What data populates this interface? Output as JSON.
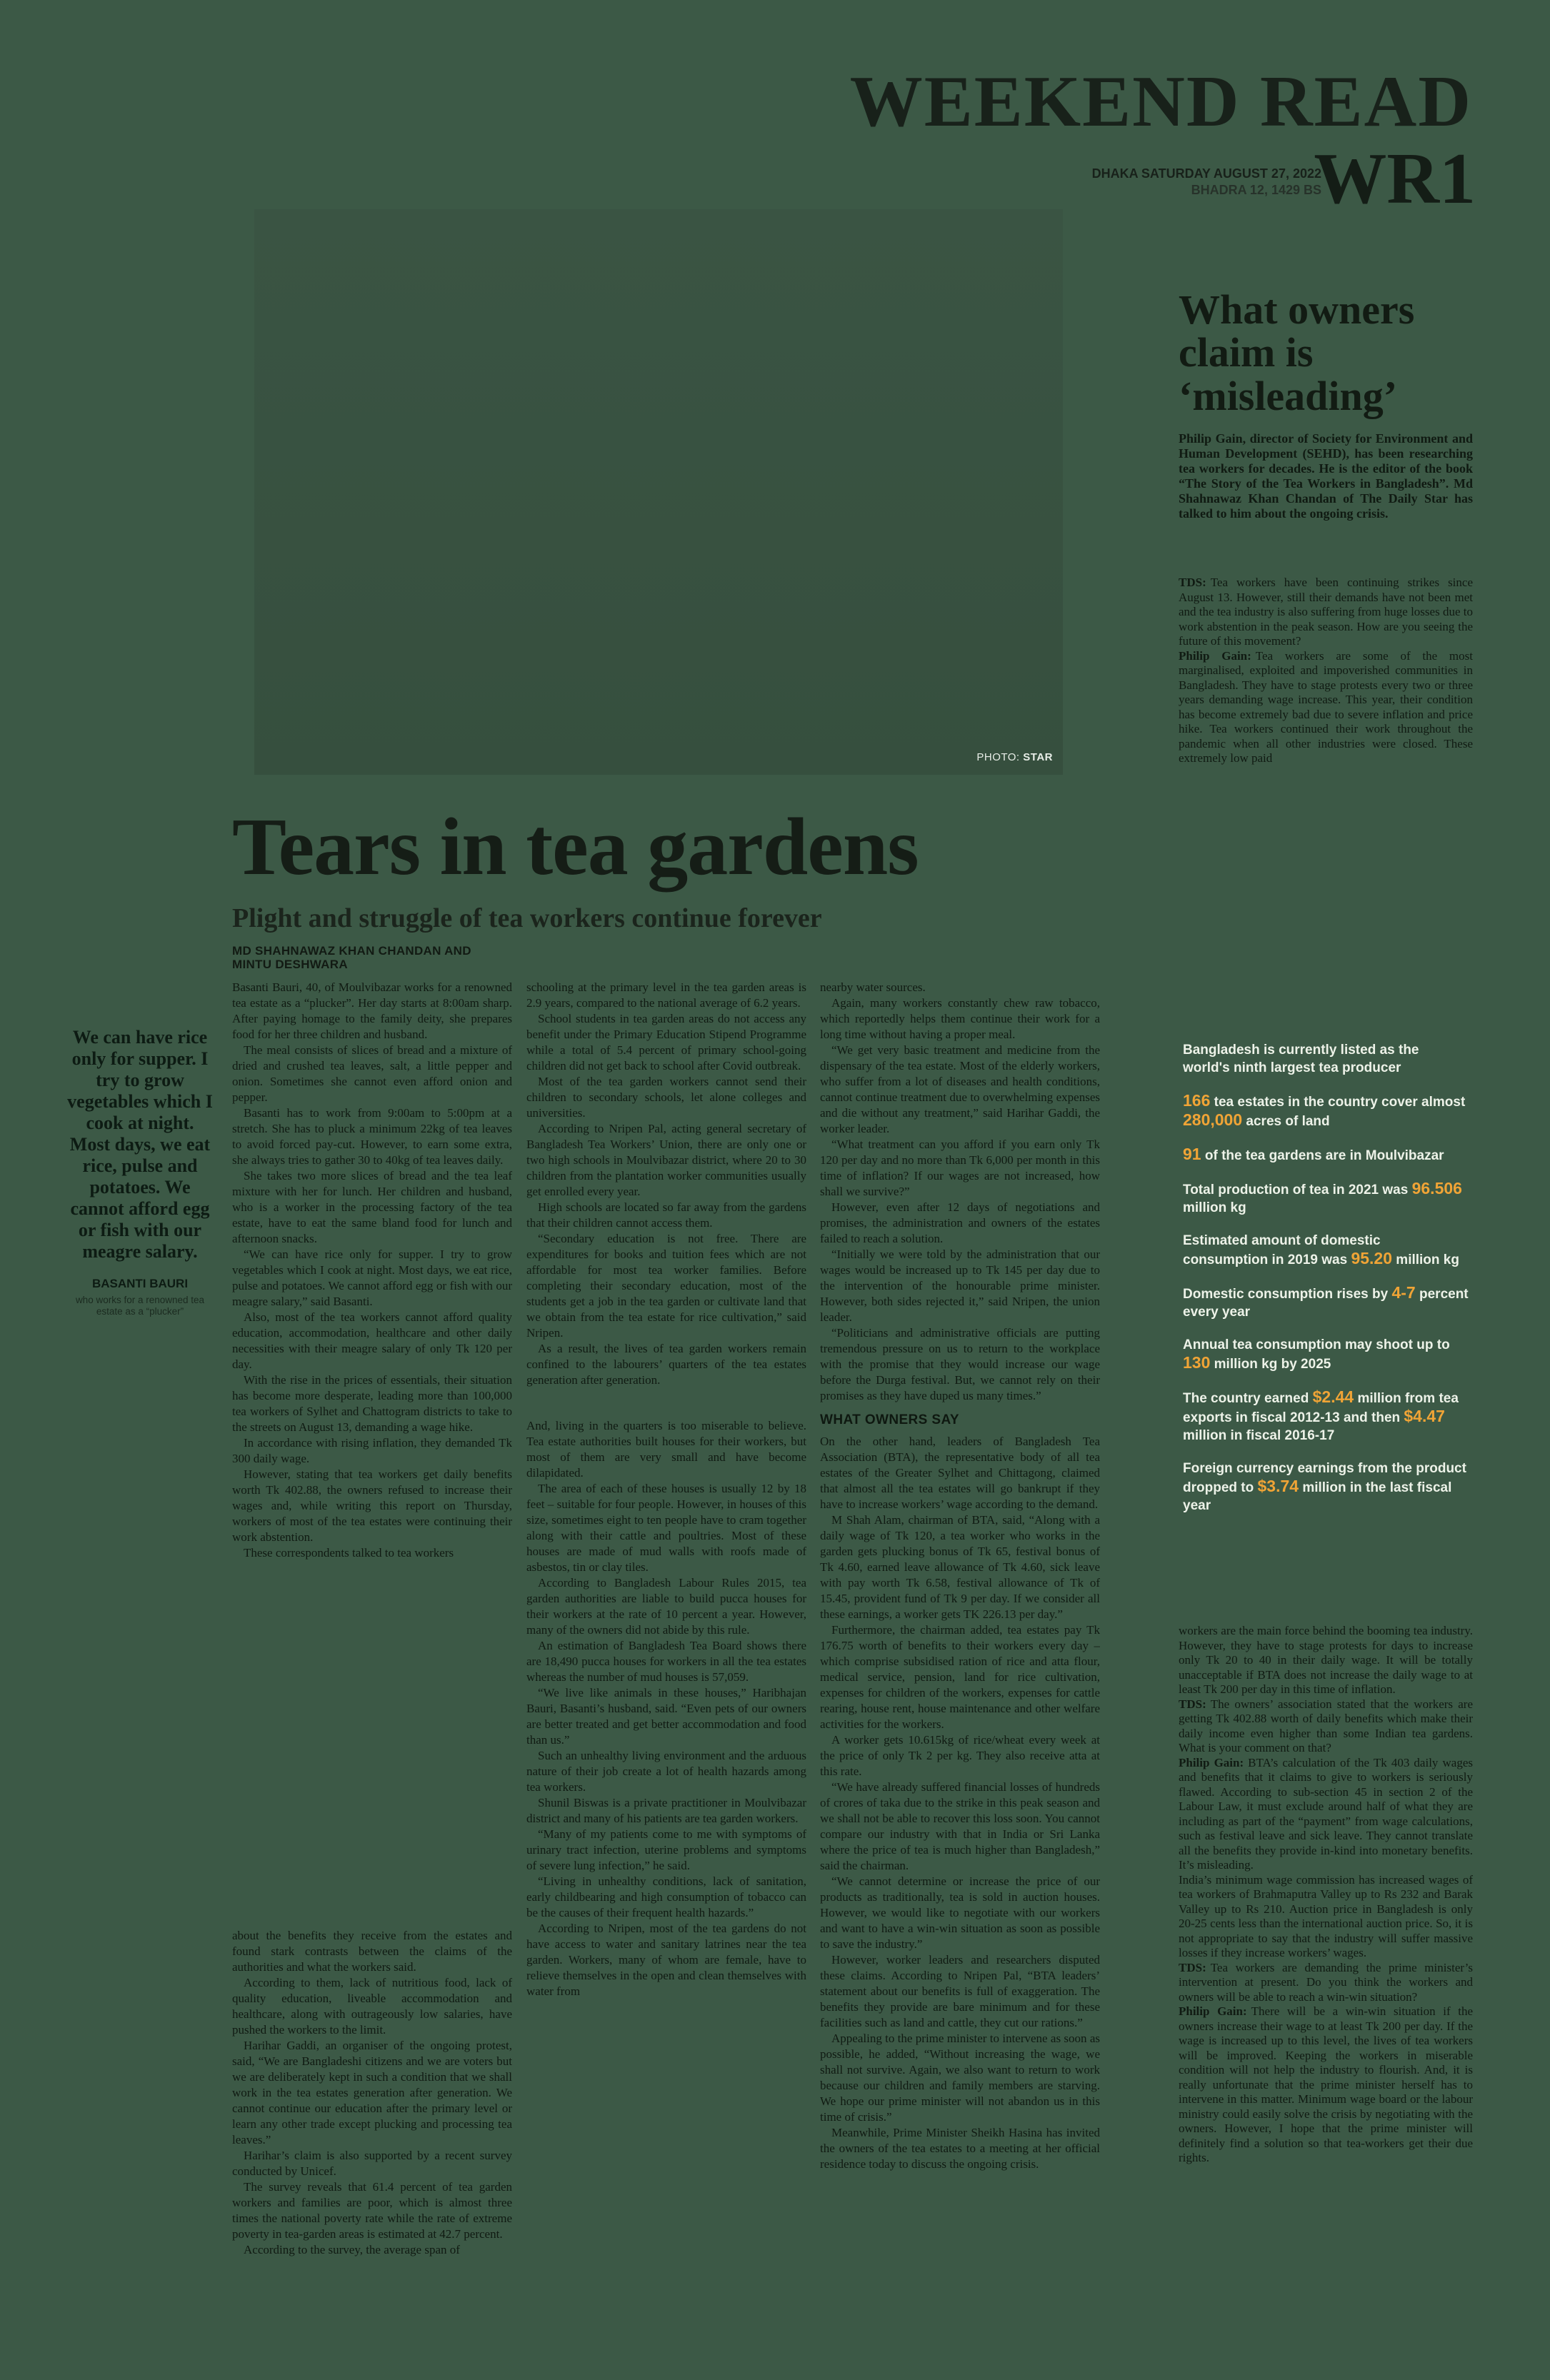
{
  "masthead": {
    "title": "WEEKEND READ",
    "date_line1": "DHAKA SATURDAY AUGUST 27, 2022",
    "date_line2": "BHADRA 12, 1429 BS",
    "page_code": "WR1"
  },
  "photo": {
    "credit_label": "PHOTO:",
    "credit_value": "STAR"
  },
  "main_article": {
    "headline": "Tears in tea gardens",
    "subhead": "Plight and struggle of tea workers continue forever",
    "byline": "MD SHAHNAWAZ KHAN CHANDAN AND MINTU DESHWARA",
    "col1a": [
      "Basanti Bauri, 40, of Moulvibazar works for a renowned tea estate as a “plucker”. Her day starts at 8:00am sharp. After paying homage to the family deity, she prepares food for her three children and husband.",
      "The meal consists of slices of bread and a mixture of dried and crushed tea leaves, salt, a little pepper and onion. Sometimes she cannot even afford onion and pepper.",
      "Basanti has to work from 9:00am to 5:00pm at a stretch. She has to pluck a minimum 22kg of tea leaves to avoid forced pay-cut. However, to earn some extra, she always tries to gather 30 to 40kg of tea leaves daily.",
      "She takes two more slices of bread and the tea leaf mixture with her for lunch. Her children and husband, who is a worker in the processing factory of the tea estate, have to eat the same bland food for lunch and afternoon snacks.",
      "“We can have rice only for supper. I try to grow vegetables which I cook at night. Most days, we eat rice, pulse and potatoes. We cannot afford egg or fish with our meagre salary,” said Basanti.",
      "Also, most of the tea workers cannot afford quality education, accommodation, healthcare and other daily necessities with their meagre salary of only Tk 120 per day.",
      "With the rise in the prices of essentials, their situation has become more desperate, leading more than 100,000 tea workers of Sylhet and Chattogram districts to take to the streets on August 13, demanding a wage hike.",
      "In accordance with rising inflation, they demanded Tk 300 daily wage.",
      "However, stating that tea workers get daily benefits worth Tk 402.88, the owners refused to increase their wages and, while writing this report on Thursday, workers of most of the tea estates were continuing their work abstention.",
      "These correspondents talked to tea workers"
    ],
    "col1b": [
      "about the benefits they receive from the estates and found stark contrasts between the claims of the authorities and what the workers said.",
      "According to them, lack of nutritious food, lack of quality education, liveable accommodation and healthcare, along with outrageously low salaries, have pushed the workers to the limit.",
      "Harihar Gaddi, an organiser of the ongoing protest, said, “We are Bangladeshi citizens and we are voters but we are deliberately kept in such a condition that we shall work in the tea estates generation after generation. We cannot continue our education after the primary level or learn any other trade except plucking and processing tea leaves.”",
      "Harihar’s claim is also supported by a recent survey conducted by Unicef.",
      "The survey reveals that 61.4 percent of tea garden workers and families are poor, which is almost three times the national poverty rate while the rate of extreme poverty in tea-garden areas is estimated at 42.7 percent.",
      "According to the survey, the average span of"
    ],
    "col2a": [
      "schooling at the primary level in the tea garden areas is 2.9 years, compared to the national average of 6.2 years.",
      "School students in tea garden areas do not access any benefit under the Primary Education Stipend Programme while a total of 5.4 percent of primary school-going children did not get back to school after Covid outbreak.",
      "Most of the tea garden workers cannot send their children to secondary schools, let alone colleges and universities.",
      "According to Nripen Pal, acting general secretary of Bangladesh Tea Workers’ Union, there are only one or two high schools in Moulvibazar district, where 20 to 30 children from the plantation worker communities usually get enrolled every year.",
      "High schools are located so far away from the gardens that their children cannot access them.",
      "“Secondary education is not free. There are expenditures for books and tuition fees which are not affordable for most tea worker families. Before completing their secondary education, most of the students get a job in the tea garden or cultivate land that we obtain from the tea estate for rice cultivation,” said Nripen.",
      "As a result, the lives of tea garden workers remain confined to the labourers’ quarters of the tea estates generation after generation."
    ],
    "col2b": [
      "And, living in the quarters is too miserable to believe. Tea estate authorities built houses for their workers, but most of them are very small and have become dilapidated.",
      "The area of each of these houses is usually 12 by 18 feet – suitable for four people. However, in houses of this size, sometimes eight to ten people have to cram together along with their cattle and poultries. Most of these houses are made of mud walls with roofs made of asbestos, tin or clay tiles.",
      "According to Bangladesh Labour Rules 2015, tea garden authorities are liable to build pucca houses for their workers at the rate of 10 percent a year. However, many of the owners did not abide by this rule.",
      "An estimation of Bangladesh Tea Board shows there are 18,490 pucca houses for workers in all the tea estates whereas the number of mud houses is 57,059.",
      "“We live like animals in these houses,” Haribhajan Bauri, Basanti’s husband, said. “Even pets of our owners are better treated and get better accommodation and food than us.”",
      "Such an unhealthy living environment and the arduous nature of their job create a lot of health hazards among tea workers.",
      "Shunil Biswas is a private practitioner in Moulvibazar district and many of his patients are tea garden workers.",
      "“Many of my patients come to me with symptoms of urinary tract infection, uterine problems and symptoms of severe lung infection,” he said.",
      "“Living in unhealthy conditions, lack of sanitation, early childbearing and high consumption of tobacco can be the causes of their frequent health hazards.”",
      "According to Nripen, most of the tea gardens do not have access to water and sanitary latrines near the tea garden. Workers, many of whom are female, have to relieve themselves in the open and clean themselves with water from"
    ],
    "col3a": [
      "nearby water sources.",
      "Again, many workers constantly chew raw tobacco, which reportedly helps them continue their work for a long time without having a proper meal.",
      "“We get very basic treatment and medicine from the dispensary of the tea estate. Most of the elderly workers, who suffer from a lot of diseases and health conditions, cannot continue treatment due to overwhelming expenses and die without any treatment,” said Harihar Gaddi, the worker leader.",
      "“What treatment can you afford if you earn only Tk 120 per day and no more than Tk 6,000 per month in this time of inflation? If our wages are not increased, how shall we survive?”",
      "However, even after 12 days of negotiations and promises, the administration and owners of the estates failed to reach a solution.",
      "“Initially we were told by the administration that our wages would be increased up to Tk 145 per day due to the intervention of the honourable prime minister. However, both sides rejected it,” said Nripen, the union leader.",
      "“Politicians and administrative officials are putting tremendous pressure on us to return to the workplace with the promise that they would increase our wage before the Durga festival. But, we cannot rely on their promises as they have duped us many times.”"
    ],
    "owners_heading": "WHAT OWNERS SAY",
    "col3b": [
      "On the other hand, leaders of Bangladesh Tea Association (BTA), the representative body of all tea estates of the Greater Sylhet and Chittagong, claimed that almost all the tea estates will go bankrupt if they have to increase workers’ wage according to the demand.",
      "M Shah Alam, chairman of BTA, said, “Along with a daily wage of Tk 120, a tea worker who works in the garden gets plucking bonus of Tk 65, festival bonus of Tk 4.60, earned leave allowance of Tk 4.60, sick leave with pay worth Tk 6.58, festival allowance of Tk of 15.45, provident fund of Tk 9 per day. If we consider all these earnings, a worker gets TK 226.13 per day.”",
      "Furthermore, the chairman added, tea estates pay Tk 176.75 worth of benefits to their workers every day – which comprise subsidised ration of rice and atta flour, medical service, pension, land for rice cultivation, expenses for children of the workers, expenses for cattle rearing, house rent, house maintenance and other welfare activities for the workers.",
      "A worker gets 10.615kg of rice/wheat every week at the price of only Tk 2 per kg. They also receive atta at this rate.",
      "“We have already suffered financial losses of hundreds of crores of taka due to the strike in this peak season and we shall not be able to recover this loss soon. You cannot compare our industry with that in India or Sri Lanka where the price of tea is much higher than Bangladesh,” said the chairman.",
      "“We cannot determine or increase the price of our products as traditionally, tea is sold in auction houses. However, we would like to negotiate with our workers and want to have a win-win situation as soon as possible to save the industry.”",
      "However, worker leaders and researchers disputed these claims. According to Nripen Pal, “BTA leaders’ statement about our benefits is full of exaggeration. The benefits they provide are bare minimum and for these facilities such as land and cattle, they cut our rations.”",
      "Appealing to the prime minister to intervene as soon as possible, he added, “Without increasing the wage, we shall not survive. Again, we also want to return to work because our children and family members are starving. We hope our prime minister will not abandon us in this time of crisis.”",
      "Meanwhile, Prime Minister Sheikh Hasina has invited the owners of the tea estates to a meeting at her official residence today to discuss the ongoing crisis."
    ]
  },
  "pull_quote": {
    "text": "We can have rice only for supper. I try to grow vegetables which I cook at night. Most days, we eat rice, pulse and potatoes. We cannot afford egg or fish with our meagre salary.",
    "attribution": "BASANTI BAURI",
    "attribution_detail": "who works for a renowned tea estate as a “plucker”"
  },
  "interview": {
    "headline": "What owners claim is ‘misleading’",
    "intro": "Philip Gain, director of Society for Environment and Human Development (SEHD), has been researching tea workers for decades. He is the editor of the book “The Story of the Tea Workers in Bangladesh”. Md Shahnawaz Khan Chandan of The Daily Star has talked to him about the ongoing crisis.",
    "qa_top": [
      {
        "lead": "TDS:",
        "text": "Tea workers have been continuing strikes since August 13. However, still their demands have not been met and the tea industry is also suffering from huge losses due to work abstention in the peak season. How are you seeing the future of this movement?"
      },
      {
        "lead": "Philip Gain:",
        "text": "Tea workers are some of the most marginalised, exploited and impoverished communities in Bangladesh. They have to stage protests every two or three years demanding wage increase. This year, their condition has become extremely bad due to severe inflation and price hike. Tea workers continued their work throughout the pandemic when all other industries were closed. These extremely low paid"
      }
    ],
    "qa_bottom": [
      {
        "lead": "",
        "text": "workers are the main force behind the booming tea industry. However, they have to stage protests for days to increase only Tk 20 to 40 in their daily wage. It will be totally unacceptable if BTA does not increase the daily wage to at least Tk 200 per day in this time of inflation."
      },
      {
        "lead": "TDS:",
        "text": "The owners’ association stated that the workers are getting Tk 402.88 worth of daily benefits which make their daily income even higher than some Indian tea gardens. What is your comment on that?"
      },
      {
        "lead": "Philip Gain:",
        "text": "BTA’s calculation of the Tk 403 daily wages and benefits that it claims to give to workers is seriously flawed. According to sub-section 45 in section 2 of the Labour Law, it must exclude around half of what they are including as part of the “payment” from wage calculations, such as festival leave and sick leave. They cannot translate all the benefits they provide in-kind into monetary benefits. It’s misleading."
      },
      {
        "lead": "",
        "text": "India’s minimum wage commission has increased wages of tea workers of Brahmaputra Valley up to Rs 232 and Barak Valley up to Rs 210. Auction price in Bangladesh is only 20-25 cents less than the international auction price. So, it is not appropriate to say that the industry will suffer massive losses if they increase workers’ wages."
      },
      {
        "lead": "TDS:",
        "text": "Tea workers are demanding the prime minister’s intervention at present. Do you think the workers and owners will be able to reach a win-win situation?"
      },
      {
        "lead": "Philip Gain:",
        "text": "There will be a win-win situation if the owners increase their wage to at least Tk 200 per day. If the wage is increased up to this level, the lives of tea workers will be improved. Keeping the workers in miserable condition will not help the industry to flourish. And, it is really unfortunate that the prime minister herself has to intervene in this matter. Minimum wage board or the labour ministry could easily solve the crisis by negotiating with the owners. However, I hope that the prime minister will definitely find a solution so that tea-workers get their due rights."
      }
    ]
  },
  "facts_box": {
    "accent_color": "#F0A436",
    "items": [
      [
        {
          "text": "Bangladesh is currently listed as the world's ninth largest tea producer",
          "hl": false
        }
      ],
      [
        {
          "text": "166",
          "hl": true
        },
        {
          "text": " tea estates in the country cover almost ",
          "hl": false
        },
        {
          "text": "280,000",
          "hl": true
        },
        {
          "text": " acres of land",
          "hl": false
        }
      ],
      [
        {
          "text": "91",
          "hl": true
        },
        {
          "text": " of the tea gardens are in Moulvibazar",
          "hl": false
        }
      ],
      [
        {
          "text": "Total production of tea in 2021 was ",
          "hl": false
        },
        {
          "text": "96.506",
          "hl": true
        },
        {
          "text": " million kg",
          "hl": false
        }
      ],
      [
        {
          "text": "Estimated amount of domestic consumption in 2019 was ",
          "hl": false
        },
        {
          "text": "95.20",
          "hl": true
        },
        {
          "text": " million kg",
          "hl": false
        }
      ],
      [
        {
          "text": "Domestic consumption rises by ",
          "hl": false
        },
        {
          "text": "4-7",
          "hl": true
        },
        {
          "text": " percent every year",
          "hl": false
        }
      ],
      [
        {
          "text": "Annual tea consumption may shoot up to ",
          "hl": false
        },
        {
          "text": "130",
          "hl": true
        },
        {
          "text": " million kg by 2025",
          "hl": false
        }
      ],
      [
        {
          "text": "The country earned ",
          "hl": false
        },
        {
          "text": "$2.44",
          "hl": true
        },
        {
          "text": " million from tea exports in fiscal 2012-13 and then ",
          "hl": false
        },
        {
          "text": "$4.47",
          "hl": true
        },
        {
          "text": " million in fiscal 2016-17",
          "hl": false
        }
      ],
      [
        {
          "text": "Foreign currency earnings from the product dropped to ",
          "hl": false
        },
        {
          "text": "$3.74",
          "hl": true
        },
        {
          "text": " million in the last fiscal year",
          "hl": false
        }
      ]
    ]
  }
}
